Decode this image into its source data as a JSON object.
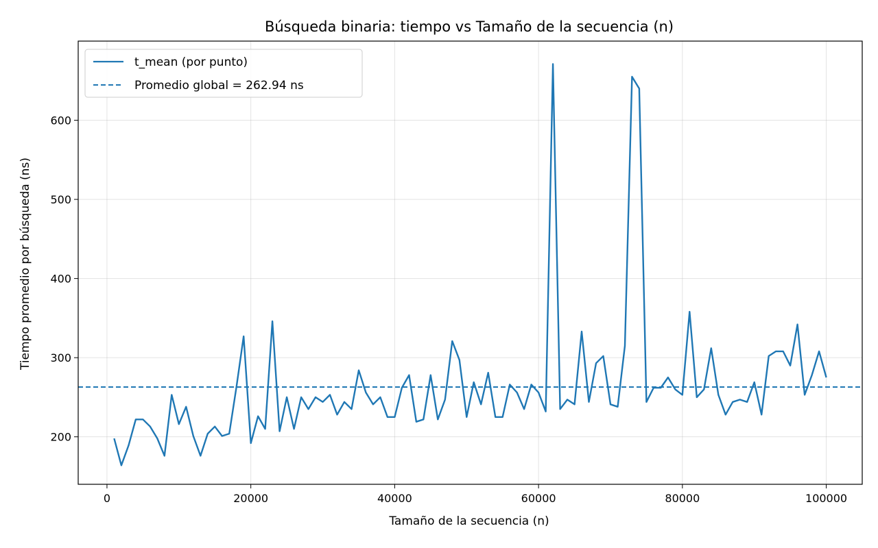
{
  "chart_data": {
    "type": "line",
    "title": "Búsqueda binaria: tiempo vs Tamaño de la secuencia (n)",
    "xlabel": "Tamaño de la secuencia (n)",
    "ylabel": "Tiempo promedio por búsqueda (ns)",
    "xlim": [
      -4000,
      105000
    ],
    "ylim": [
      140,
      700
    ],
    "xticks": [
      0,
      20000,
      40000,
      60000,
      80000,
      100000
    ],
    "xtick_labels": [
      "0",
      "20000",
      "40000",
      "60000",
      "80000",
      "100000"
    ],
    "yticks": [
      200,
      300,
      400,
      500,
      600
    ],
    "ytick_labels": [
      "200",
      "300",
      "400",
      "500",
      "600"
    ],
    "grid": true,
    "legend_position": "top-left",
    "series": [
      {
        "name": "t_mean (por punto)",
        "color": "#1f77b4",
        "style": "solid",
        "x": [
          1000,
          2000,
          3000,
          4000,
          5000,
          6000,
          7000,
          8000,
          9000,
          10000,
          11000,
          12000,
          13000,
          14000,
          15000,
          16000,
          17000,
          18000,
          19000,
          20000,
          21000,
          22000,
          23000,
          24000,
          25000,
          26000,
          27000,
          28000,
          29000,
          30000,
          31000,
          32000,
          33000,
          34000,
          35000,
          36000,
          37000,
          38000,
          39000,
          40000,
          41000,
          42000,
          43000,
          44000,
          45000,
          46000,
          47000,
          48000,
          49000,
          50000,
          51000,
          52000,
          53000,
          54000,
          55000,
          56000,
          57000,
          58000,
          59000,
          60000,
          61000,
          62000,
          63000,
          64000,
          65000,
          66000,
          67000,
          68000,
          69000,
          70000,
          71000,
          72000,
          73000,
          74000,
          75000,
          76000,
          77000,
          78000,
          79000,
          80000,
          81000,
          82000,
          83000,
          84000,
          85000,
          86000,
          87000,
          88000,
          89000,
          90000,
          91000,
          92000,
          93000,
          94000,
          95000,
          96000,
          97000,
          98000,
          99000,
          100000
        ],
        "values": [
          198,
          164,
          189,
          222,
          222,
          213,
          198,
          176,
          253,
          216,
          238,
          201,
          176,
          204,
          213,
          201,
          204,
          263,
          327,
          192,
          226,
          210,
          346,
          207,
          250,
          210,
          250,
          235,
          250,
          244,
          253,
          228,
          244,
          235,
          284,
          256,
          241,
          250,
          225,
          225,
          262,
          278,
          219,
          222,
          278,
          222,
          247,
          321,
          297,
          225,
          269,
          241,
          281,
          225,
          225,
          266,
          256,
          235,
          266,
          256,
          232,
          671,
          235,
          247,
          241,
          333,
          244,
          293,
          302,
          241,
          238,
          315,
          655,
          640,
          244,
          262,
          262,
          275,
          260,
          253,
          358,
          250,
          260,
          312,
          253,
          228,
          244,
          247,
          244,
          269,
          228,
          302,
          308,
          308,
          290,
          342,
          253,
          278,
          308,
          275
        ]
      },
      {
        "name": "Promedio global = 262.94 ns",
        "color": "#1f77b4",
        "style": "dashed",
        "constant": 262.94
      }
    ]
  }
}
